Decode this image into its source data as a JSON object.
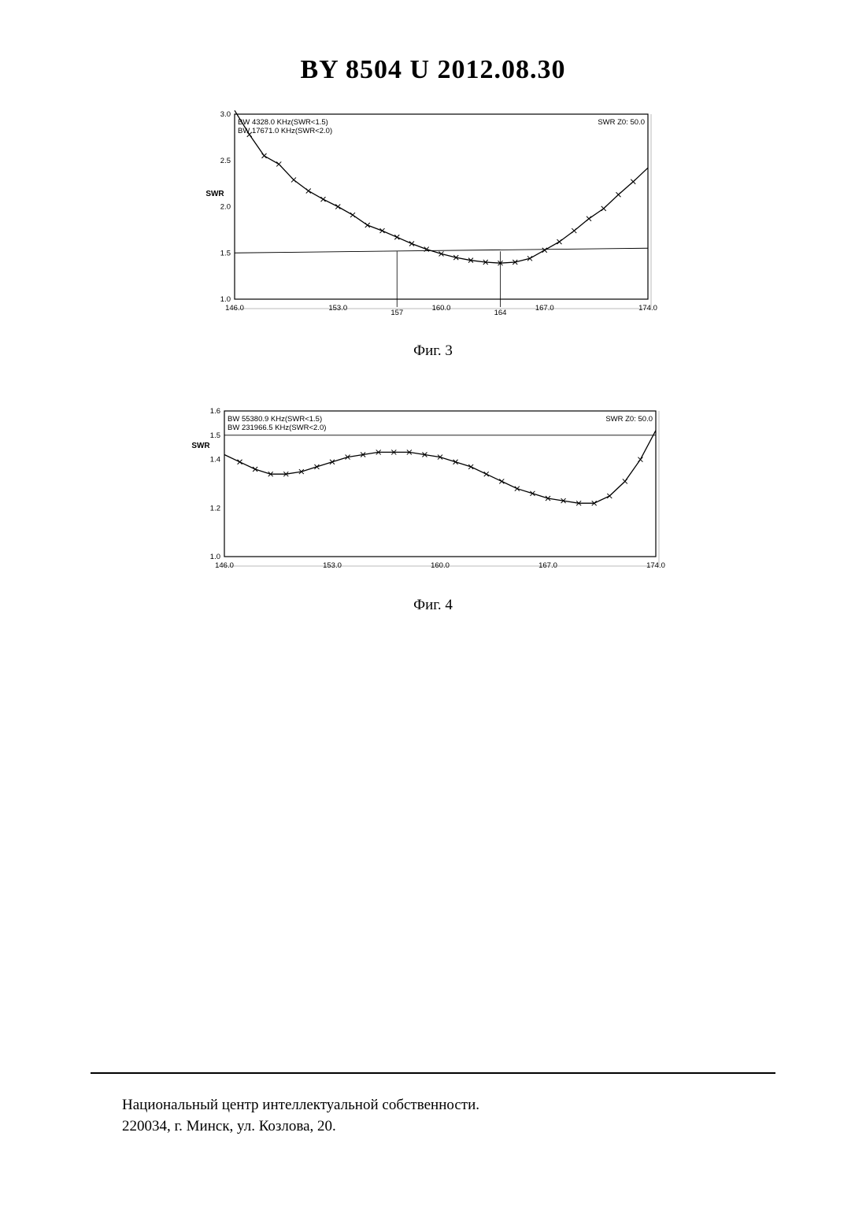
{
  "header": {
    "title": "BY  8504  U  2012.08.30"
  },
  "chart_data": [
    {
      "type": "line",
      "x": [
        146.0,
        147.0,
        148.0,
        149.0,
        150.0,
        151.0,
        152.0,
        153.0,
        154.0,
        155.0,
        156.0,
        157.0,
        158.0,
        159.0,
        160.0,
        161.0,
        162.0,
        163.0,
        164.0,
        165.0,
        166.0,
        167.0,
        168.0,
        169.0,
        170.0,
        171.0,
        172.0,
        173.0,
        174.0
      ],
      "series": [
        {
          "values": [
            3.05,
            2.78,
            2.55,
            2.46,
            2.29,
            2.17,
            2.08,
            2.0,
            1.91,
            1.8,
            1.74,
            1.67,
            1.6,
            1.54,
            1.49,
            1.45,
            1.42,
            1.4,
            1.39,
            1.4,
            1.44,
            1.53,
            1.62,
            1.74,
            1.87,
            1.98,
            2.13,
            2.27,
            2.42
          ]
        }
      ],
      "xlim": [
        146.0,
        174.0
      ],
      "ylim": [
        1.0,
        3.0
      ],
      "xticks": [
        "146.0",
        "153.0",
        "157",
        "160.0",
        "164",
        "167.0",
        "174.0"
      ],
      "yticks": [
        "1.0",
        "1.5",
        "2.0",
        "2.5",
        "3.0"
      ],
      "ylabel": "SWR",
      "annotations": [
        "BW 4328.0 KHz(SWR<1.5)",
        "BW 17671.0 KHz(SWR<2.0)",
        "SWR Z0: 50.0"
      ],
      "reference_line": 1.5,
      "markers": [
        157,
        164
      ],
      "grid": false
    },
    {
      "type": "line",
      "x": [
        146.0,
        147.0,
        148.0,
        149.0,
        150.0,
        151.0,
        152.0,
        153.0,
        154.0,
        155.0,
        156.0,
        157.0,
        158.0,
        159.0,
        160.0,
        161.0,
        162.0,
        163.0,
        164.0,
        165.0,
        166.0,
        167.0,
        168.0,
        169.0,
        170.0,
        171.0,
        172.0,
        173.0,
        174.0
      ],
      "series": [
        {
          "values": [
            1.42,
            1.39,
            1.36,
            1.34,
            1.34,
            1.35,
            1.37,
            1.39,
            1.41,
            1.42,
            1.43,
            1.43,
            1.43,
            1.42,
            1.41,
            1.39,
            1.37,
            1.34,
            1.31,
            1.28,
            1.26,
            1.24,
            1.23,
            1.22,
            1.22,
            1.25,
            1.31,
            1.4,
            1.52
          ]
        }
      ],
      "xlim": [
        146.0,
        174.0
      ],
      "ylim": [
        1.0,
        1.6
      ],
      "xticks": [
        "146.0",
        "153.0",
        "160.0",
        "167.0",
        "174.0"
      ],
      "yticks": [
        "1.0",
        "1.2",
        "1.4",
        "1.5",
        "1.6"
      ],
      "ylabel": "SWR",
      "annotations": [
        "BW 55380.9 KHz(SWR<1.5)",
        "BW 231966.5 KHz(SWR<2.0)",
        "SWR Z0: 50.0"
      ],
      "reference_line": 1.5,
      "grid": false
    }
  ],
  "captions": {
    "fig3": "Фиг. 3",
    "fig4": "Фиг. 4"
  },
  "footer": {
    "line1": "Национальный центр интеллектуальной собственности.",
    "line2": "220034, г. Минск, ул. Козлова, 20."
  }
}
